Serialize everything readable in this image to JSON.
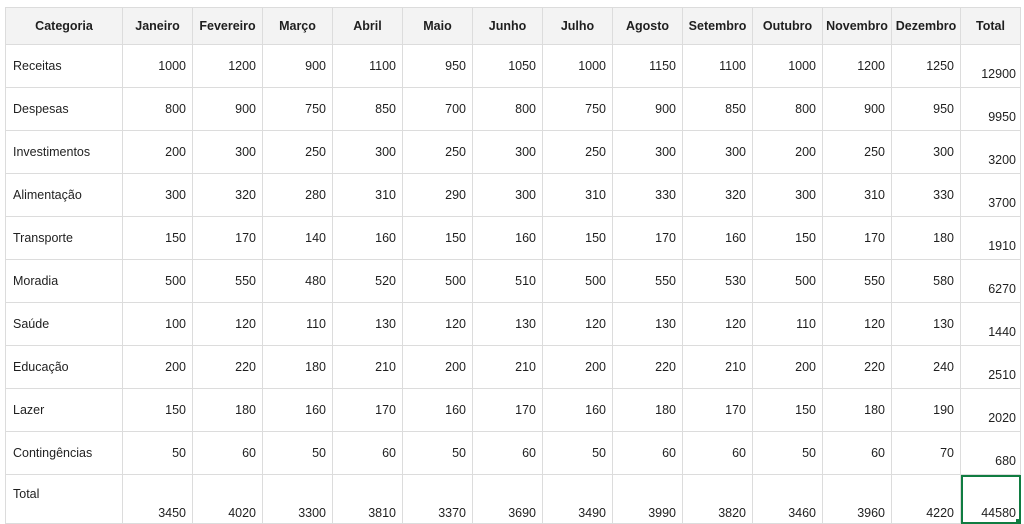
{
  "table": {
    "headers": [
      "Categoria",
      "Janeiro",
      "Fevereiro",
      "Março",
      "Abril",
      "Maio",
      "Junho",
      "Julho",
      "Agosto",
      "Setembro",
      "Outubro",
      "Novembro",
      "Dezembro",
      "Total"
    ],
    "rows": [
      {
        "label": "Receitas",
        "values": [
          "1000",
          "1200",
          "900",
          "1100",
          "950",
          "1050",
          "1000",
          "1150",
          "1100",
          "1000",
          "1200",
          "1250"
        ],
        "total": "12900"
      },
      {
        "label": "Despesas",
        "values": [
          "800",
          "900",
          "750",
          "850",
          "700",
          "800",
          "750",
          "900",
          "850",
          "800",
          "900",
          "950"
        ],
        "total": "9950"
      },
      {
        "label": "Investimentos",
        "values": [
          "200",
          "300",
          "250",
          "300",
          "250",
          "300",
          "250",
          "300",
          "300",
          "200",
          "250",
          "300"
        ],
        "total": "3200"
      },
      {
        "label": "Alimentação",
        "values": [
          "300",
          "320",
          "280",
          "310",
          "290",
          "300",
          "310",
          "330",
          "320",
          "300",
          "310",
          "330"
        ],
        "total": "3700"
      },
      {
        "label": "Transporte",
        "values": [
          "150",
          "170",
          "140",
          "160",
          "150",
          "160",
          "150",
          "170",
          "160",
          "150",
          "170",
          "180"
        ],
        "total": "1910"
      },
      {
        "label": "Moradia",
        "values": [
          "500",
          "550",
          "480",
          "520",
          "500",
          "510",
          "500",
          "550",
          "530",
          "500",
          "550",
          "580"
        ],
        "total": "6270"
      },
      {
        "label": "Saúde",
        "values": [
          "100",
          "120",
          "110",
          "130",
          "120",
          "130",
          "120",
          "130",
          "120",
          "110",
          "120",
          "130"
        ],
        "total": "1440"
      },
      {
        "label": "Educação",
        "values": [
          "200",
          "220",
          "180",
          "210",
          "200",
          "210",
          "200",
          "220",
          "210",
          "200",
          "220",
          "240"
        ],
        "total": "2510"
      },
      {
        "label": "Lazer",
        "values": [
          "150",
          "180",
          "160",
          "170",
          "160",
          "170",
          "160",
          "180",
          "170",
          "150",
          "180",
          "190"
        ],
        "total": "2020"
      },
      {
        "label": "Contingências",
        "values": [
          "50",
          "60",
          "50",
          "60",
          "50",
          "60",
          "50",
          "60",
          "60",
          "50",
          "60",
          "70"
        ],
        "total": "680"
      },
      {
        "label": "Total",
        "values": [
          "3450",
          "4020",
          "3300",
          "3810",
          "3370",
          "3690",
          "3490",
          "3990",
          "3820",
          "3460",
          "3960",
          "4220"
        ],
        "total": "44580"
      }
    ]
  },
  "colors": {
    "selection": "#107c41",
    "header_bg": "#f3f3f3",
    "grid_line": "#dcdcdc"
  }
}
